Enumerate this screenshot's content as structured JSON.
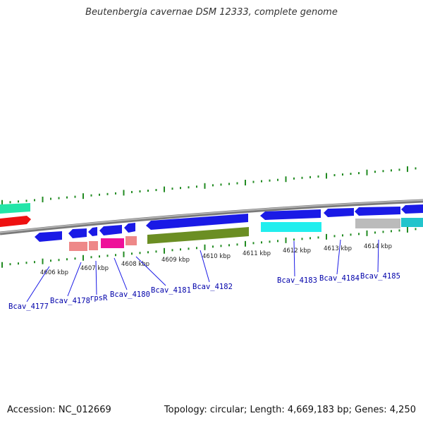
{
  "title": "Beutenbergia cavernae DSM 12333, complete genome",
  "footer": {
    "accession": "Accession: NC_012669",
    "summary": "Topology: circular; Length: 4,669,183 bp; Genes: 4,250"
  },
  "scale_labels": [
    "4606 kbp",
    "4607 kbp",
    "4608 kbp",
    "4609 kbp",
    "4610 kbp",
    "4611 kbp",
    "4612 kbp",
    "4613 kbp",
    "4614 kbp"
  ],
  "gene_labels": [
    "Bcav_4177",
    "Bcav_4178",
    "rpsR",
    "Bcav_4180",
    "Bcav_4181",
    "Bcav_4182",
    "Bcav_4183",
    "Bcav_4184",
    "Bcav_4185"
  ],
  "colors": {
    "blue": "#1a1ae6",
    "red": "#ee1111",
    "teal": "#22e6a8",
    "cyan": "#22eeee",
    "olive": "#6b8e23",
    "magenta": "#ee1199",
    "pink": "#ee8888",
    "gray": "#bbbbbb",
    "tick": "#228B22"
  }
}
